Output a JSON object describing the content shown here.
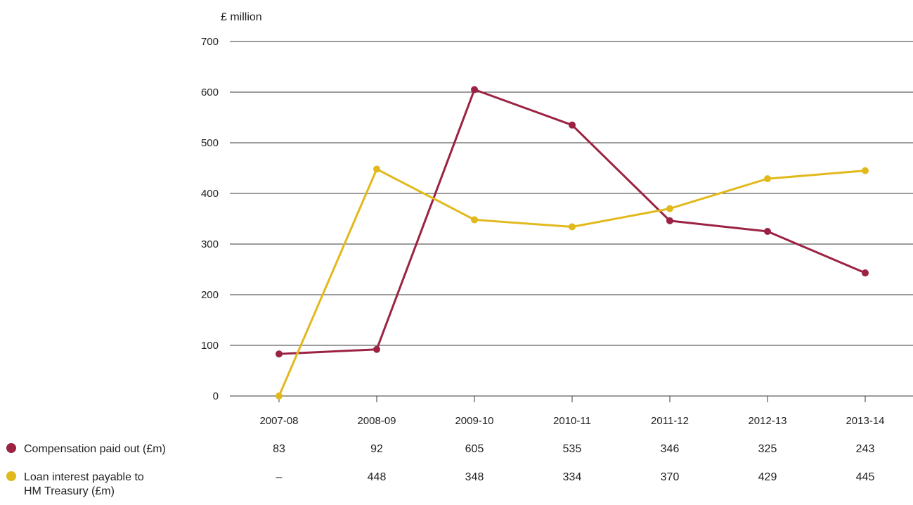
{
  "chart_data": {
    "type": "line",
    "ylabel": "£ million",
    "ylim": [
      0,
      700
    ],
    "yticks": [
      0,
      100,
      200,
      300,
      400,
      500,
      600,
      700
    ],
    "grid": true,
    "categories": [
      "2007-08",
      "2008-09",
      "2009-10",
      "2010-11",
      "2011-12",
      "2012-13",
      "2013-14"
    ],
    "series": [
      {
        "name": "Compensation paid out (£m)",
        "name_lines": [
          "Compensation paid out (£m)"
        ],
        "color": "#9b2242",
        "values": [
          83,
          92,
          605,
          535,
          346,
          325,
          243
        ],
        "table_values": [
          "83",
          "92",
          "605",
          "535",
          "346",
          "325",
          "243"
        ]
      },
      {
        "name": "Loan interest payable to HM Treasury (£m)",
        "name_lines": [
          "Loan interest payable to",
          "HM Treasury (£m)"
        ],
        "color": "#e2b91c",
        "values": [
          0,
          448,
          348,
          334,
          370,
          429,
          445
        ],
        "table_values": [
          "–",
          "448",
          "348",
          "334",
          "370",
          "429",
          "445"
        ]
      }
    ]
  }
}
